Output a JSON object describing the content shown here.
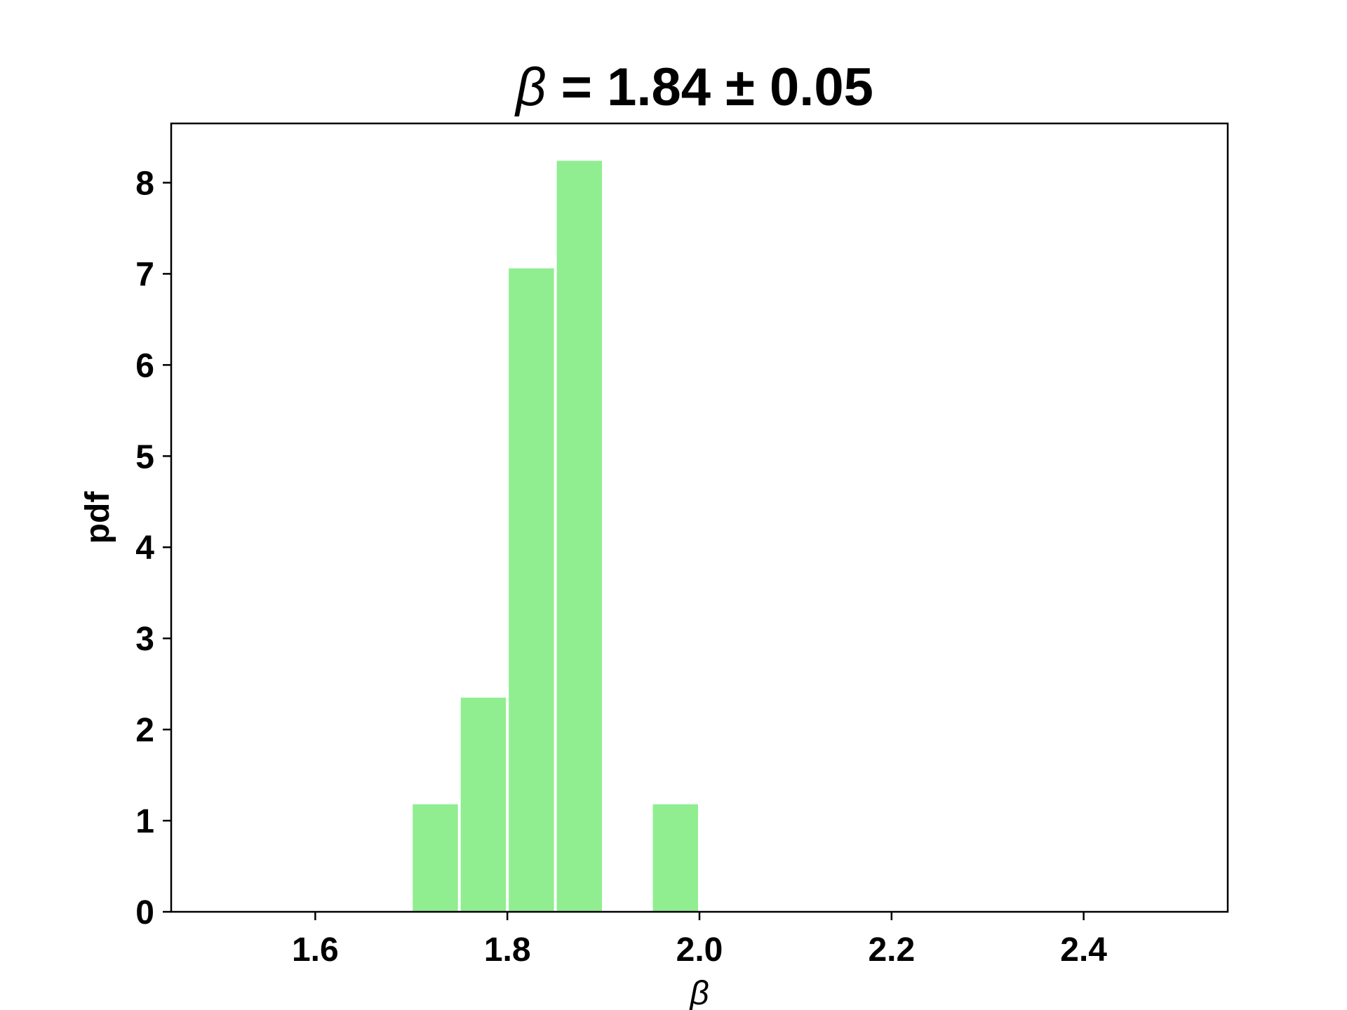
{
  "chart_data": {
    "type": "bar",
    "title": {
      "symbol": "β",
      "text": " = 1.84 ± 0.05"
    },
    "xlabel": "β",
    "ylabel": "pdf",
    "xlim": [
      1.45,
      2.55
    ],
    "ylim": [
      0,
      8.65
    ],
    "xticks": [
      1.6,
      1.8,
      2.0,
      2.2,
      2.4
    ],
    "xtick_labels": [
      "1.6",
      "1.8",
      "2.0",
      "2.2",
      "2.4"
    ],
    "yticks": [
      0,
      1,
      2,
      3,
      4,
      5,
      6,
      7,
      8
    ],
    "ytick_labels": [
      "0",
      "1",
      "2",
      "3",
      "4",
      "5",
      "6",
      "7",
      "8"
    ],
    "bins": [
      {
        "left": 1.7,
        "right": 1.75,
        "value": 1.18
      },
      {
        "left": 1.75,
        "right": 1.8,
        "value": 2.35
      },
      {
        "left": 1.8,
        "right": 1.85,
        "value": 7.06
      },
      {
        "left": 1.85,
        "right": 1.9,
        "value": 8.24
      },
      {
        "left": 1.95,
        "right": 2.0,
        "value": 1.18
      }
    ],
    "bar_color": "#90ee90",
    "grid": false
  }
}
